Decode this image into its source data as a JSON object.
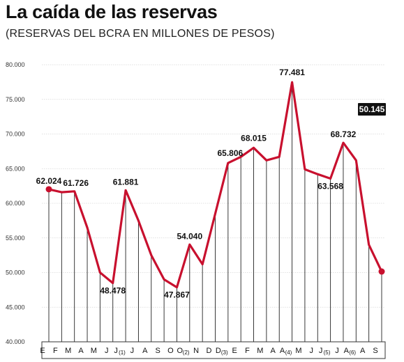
{
  "chart_data": {
    "type": "line",
    "title": "La caída de las reservas",
    "subtitle": "(RESERVAS DEL BCRA EN MILLONES DE PESOS)",
    "xlabel": "",
    "ylabel": "",
    "ylim": [
      40000,
      80000
    ],
    "yticks": [
      "40.000",
      "45.000",
      "50.000",
      "55.000",
      "60.000",
      "65.000",
      "70.000",
      "75.000",
      "80.000"
    ],
    "ytick_values": [
      40000,
      45000,
      50000,
      55000,
      60000,
      65000,
      70000,
      75000,
      80000
    ],
    "grid": "horizontal",
    "line_color": "#c8102e",
    "categories": [
      {
        "label": "E",
        "sub": ""
      },
      {
        "label": "F",
        "sub": ""
      },
      {
        "label": "M",
        "sub": ""
      },
      {
        "label": "A",
        "sub": ""
      },
      {
        "label": "M",
        "sub": ""
      },
      {
        "label": "J",
        "sub": ""
      },
      {
        "label": "J",
        "sub": "(1)"
      },
      {
        "label": "J",
        "sub": ""
      },
      {
        "label": "A",
        "sub": ""
      },
      {
        "label": "S",
        "sub": ""
      },
      {
        "label": "O",
        "sub": ""
      },
      {
        "label": "O",
        "sub": "(2)"
      },
      {
        "label": "N",
        "sub": ""
      },
      {
        "label": "D",
        "sub": ""
      },
      {
        "label": "D",
        "sub": "(3)"
      },
      {
        "label": "E",
        "sub": ""
      },
      {
        "label": "F",
        "sub": ""
      },
      {
        "label": "M",
        "sub": ""
      },
      {
        "label": "A",
        "sub": ""
      },
      {
        "label": "A",
        "sub": "(4)"
      },
      {
        "label": "M",
        "sub": ""
      },
      {
        "label": "J",
        "sub": ""
      },
      {
        "label": "J",
        "sub": "(5)"
      },
      {
        "label": "J",
        "sub": ""
      },
      {
        "label": "A",
        "sub": "(6)"
      },
      {
        "label": "A",
        "sub": ""
      },
      {
        "label": "S",
        "sub": ""
      }
    ],
    "values": [
      62024,
      61600,
      61726,
      56500,
      50000,
      48478,
      61881,
      57500,
      52500,
      49000,
      47867,
      54040,
      51200,
      58500,
      65806,
      66700,
      68015,
      66200,
      66700,
      77481,
      64900,
      64200,
      63568,
      68732,
      66200,
      54000,
      50145
    ],
    "data_labels": [
      {
        "index": 0,
        "text": "62.024"
      },
      {
        "index": 2,
        "text": "61.726"
      },
      {
        "index": 5,
        "text": "48.478"
      },
      {
        "index": 6,
        "text": "61.881"
      },
      {
        "index": 10,
        "text": "47.867"
      },
      {
        "index": 11,
        "text": "54.040"
      },
      {
        "index": 14,
        "text": "65.806"
      },
      {
        "index": 16,
        "text": "68.015"
      },
      {
        "index": 19,
        "text": "77.481"
      },
      {
        "index": 22,
        "text": "63.568"
      },
      {
        "index": 23,
        "text": "68.732"
      },
      {
        "index": 26,
        "text": "50.145"
      }
    ]
  }
}
